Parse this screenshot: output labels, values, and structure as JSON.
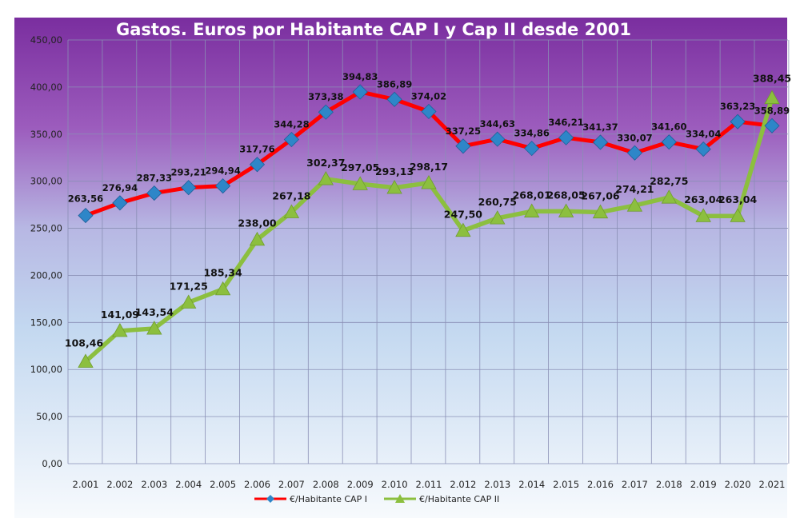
{
  "chart_data": {
    "type": "line",
    "title": "Gastos. Euros por Habitante CAP I y Cap II desde 2001",
    "xlabel": "",
    "ylabel": "",
    "categories": [
      "2.001",
      "2.002",
      "2.003",
      "2.004",
      "2.005",
      "2.006",
      "2.007",
      "2.008",
      "2.009",
      "2.010",
      "2.011",
      "2.012",
      "2.013",
      "2.014",
      "2.015",
      "2.016",
      "2.017",
      "2.018",
      "2.019",
      "2.020",
      "2.021"
    ],
    "ylim": [
      0,
      450
    ],
    "yticks": [
      0,
      50,
      100,
      150,
      200,
      250,
      300,
      350,
      400,
      450
    ],
    "ytick_labels": [
      "0,00",
      "50,00",
      "100,00",
      "150,00",
      "200,00",
      "250,00",
      "300,00",
      "350,00",
      "400,00",
      "450,00"
    ],
    "grid": true,
    "legend_position": "bottom",
    "series": [
      {
        "name": "€/Habitante CAP I",
        "color": "#ff0000",
        "marker": "diamond",
        "marker_color": "#2e86c8",
        "values": [
          263.56,
          276.94,
          287.33,
          293.21,
          294.94,
          317.76,
          344.28,
          373.38,
          394.83,
          386.89,
          374.02,
          337.25,
          344.63,
          334.86,
          346.21,
          341.37,
          330.07,
          341.6,
          334.04,
          363.23,
          358.89
        ],
        "labels": [
          "263,56",
          "276,94",
          "287,33",
          "293,21",
          "294,94",
          "317,76",
          "344,28",
          "373,38",
          "394,83",
          "386,89",
          "374,02",
          "337,25",
          "344,63",
          "334,86",
          "346,21",
          "341,37",
          "330,07",
          "341,60",
          "334,04",
          "363,23",
          "358,89"
        ]
      },
      {
        "name": "€/Habitante CAP II",
        "color": "#8cbf3f",
        "marker": "triangle",
        "marker_color": "#8cbf3f",
        "values": [
          108.46,
          141.09,
          143.54,
          171.25,
          185.34,
          238.0,
          267.18,
          302.37,
          297.05,
          293.13,
          298.17,
          247.5,
          260.75,
          268.01,
          268.05,
          267.06,
          274.21,
          282.75,
          263.04,
          263.04,
          388.45
        ],
        "labels": [
          "108,46",
          "141,09",
          "143,54",
          "171,25",
          "185,34",
          "238,00",
          "267,18",
          "302,37",
          "297,05",
          "293,13",
          "298,17",
          "247,50",
          "260,75",
          "268,01",
          "268,05",
          "267,06",
          "274,21",
          "282,75",
          "263,04",
          "263,04",
          "388,45"
        ]
      }
    ]
  },
  "colors": {
    "top_gradient": "#7b2f9e",
    "bottom_gradient": "#f6f9fd",
    "grid": "#8a8fb5"
  }
}
